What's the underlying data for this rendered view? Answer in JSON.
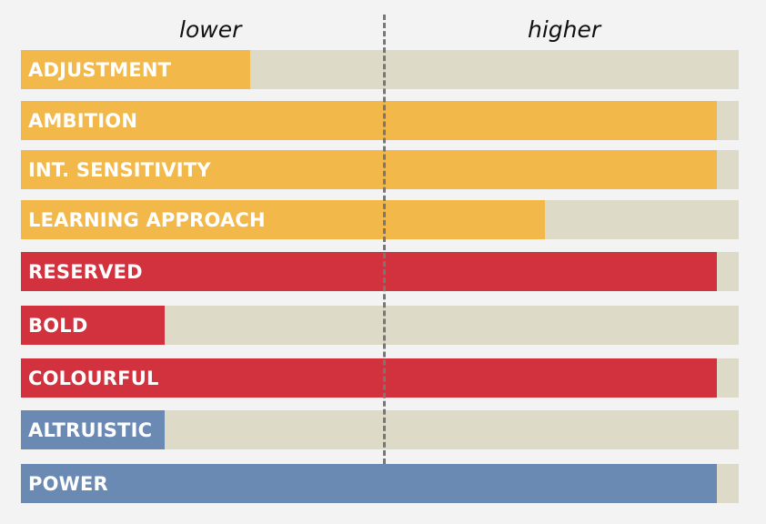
{
  "chart_data": {
    "type": "bar",
    "orientation": "horizontal",
    "axis_labels": {
      "low": "lower",
      "high": "higher"
    },
    "xlim": [
      0,
      100
    ],
    "midpoint": 50,
    "grid": false,
    "categories": [
      "ADJUSTMENT",
      "AMBITION",
      "INT. SENSITIVITY",
      "LEARNING APPROACH",
      "RESERVED",
      "BOLD",
      "COLOURFUL",
      "ALTRUISTIC",
      "POWER"
    ],
    "values": [
      32,
      97,
      97,
      73,
      97,
      20,
      97,
      20,
      97
    ],
    "colors": [
      "#f2b94a",
      "#f2b94a",
      "#f2b94a",
      "#f2b94a",
      "#d1323e",
      "#d1323e",
      "#d1323e",
      "#6a8ab3",
      "#6a8ab3"
    ],
    "track_color": "#dddbc8"
  }
}
